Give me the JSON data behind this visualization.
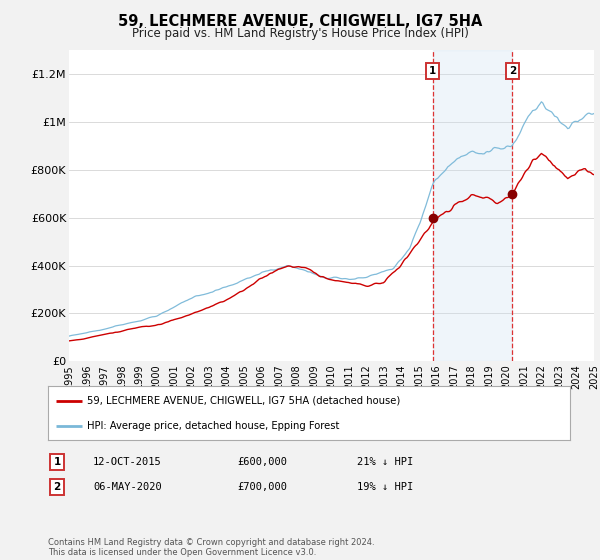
{
  "title": "59, LECHMERE AVENUE, CHIGWELL, IG7 5HA",
  "subtitle": "Price paid vs. HM Land Registry's House Price Index (HPI)",
  "ylim": [
    0,
    1300000
  ],
  "yticks": [
    0,
    200000,
    400000,
    600000,
    800000,
    1000000,
    1200000
  ],
  "ytick_labels": [
    "£0",
    "£200K",
    "£400K",
    "£600K",
    "£800K",
    "£1M",
    "£1.2M"
  ],
  "background_color": "#f2f2f2",
  "plot_background": "#ffffff",
  "hpi_color": "#7ab8d8",
  "price_color": "#cc0000",
  "marker1_date": 2015.79,
  "marker1_price": 600000,
  "marker2_date": 2020.34,
  "marker2_price": 700000,
  "marker_color": "#880000",
  "shade_color": "#cce0f0",
  "legend_label_red": "59, LECHMERE AVENUE, CHIGWELL, IG7 5HA (detached house)",
  "legend_label_blue": "HPI: Average price, detached house, Epping Forest",
  "transaction1_date": "12-OCT-2015",
  "transaction1_price": "£600,000",
  "transaction1_hpi": "21% ↓ HPI",
  "transaction2_date": "06-MAY-2020",
  "transaction2_price": "£700,000",
  "transaction2_hpi": "19% ↓ HPI",
  "footer": "Contains HM Land Registry data © Crown copyright and database right 2024.\nThis data is licensed under the Open Government Licence v3.0.",
  "xmin": 1995,
  "xmax": 2025
}
